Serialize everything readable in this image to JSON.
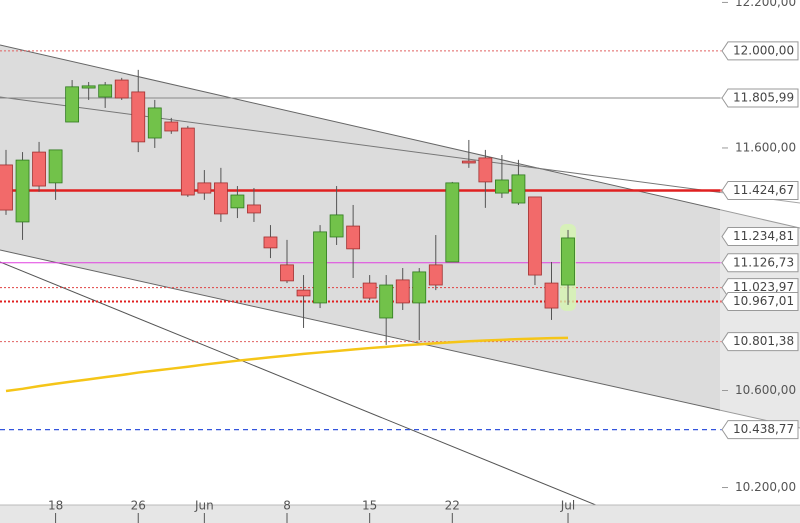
{
  "chart_data": {
    "type": "candlestick",
    "categories": [
      null,
      null,
      null,
      "18",
      null,
      null,
      null,
      null,
      "26",
      null,
      null,
      null,
      "Jun",
      null,
      null,
      null,
      null,
      "8",
      null,
      null,
      null,
      null,
      "15",
      null,
      null,
      null,
      null,
      "22",
      null,
      null,
      null,
      null,
      null,
      null,
      "Jul"
    ],
    "open": [
      11530,
      11295,
      11583,
      11456,
      11707,
      11847,
      11810,
      11880,
      11831,
      11641,
      11707,
      11682,
      11456,
      11456,
      11353,
      11365,
      11233,
      11118,
      11014,
      10961,
      11233,
      11278,
      11043,
      10899,
      11056,
      10961,
      11118,
      11130,
      11546,
      11559,
      11414,
      11373,
      11398,
      11043,
      11035
    ],
    "high": [
      11592,
      11583,
      11625,
      11592,
      11880,
      11872,
      11872,
      11889,
      11922,
      11798,
      11724,
      11691,
      11509,
      11518,
      11443,
      11435,
      11282,
      11221,
      11076,
      11282,
      11443,
      11365,
      11076,
      11076,
      11105,
      11105,
      11241,
      11460,
      11633,
      11592,
      11571,
      11551,
      11398,
      11130,
      11262
    ],
    "low": [
      11324,
      11221,
      11419,
      11386,
      11707,
      11798,
      11765,
      11798,
      11583,
      11600,
      11658,
      11398,
      11386,
      11295,
      11311,
      11295,
      11146,
      11043,
      10858,
      10940,
      11200,
      11064,
      10973,
      10788,
      10932,
      10808,
      11014,
      11130,
      11518,
      11353,
      11394,
      11365,
      11035,
      10891,
      10953
    ],
    "close": [
      11344,
      11550,
      11443,
      11592,
      11852,
      11856,
      11860,
      11806,
      11625,
      11765,
      11670,
      11406,
      11414,
      11328,
      11406,
      11332,
      11188,
      11052,
      10990,
      11254,
      11324,
      11184,
      10981,
      11035,
      10961,
      11089,
      11035,
      11456,
      11538,
      11460,
      11468,
      11489,
      11076,
      10940,
      11229
    ],
    "up_color": "#72c24a",
    "down_color": "#f26a6a",
    "moving_average": {
      "color": "#f5c518",
      "values": [
        10598,
        10607,
        10618,
        10628,
        10637,
        10646,
        10655,
        10664,
        10674,
        10682,
        10690,
        10698,
        10707,
        10715,
        10723,
        10730,
        10737,
        10744,
        10751,
        10757,
        10763,
        10769,
        10775,
        10780,
        10786,
        10790,
        10795,
        10799,
        10803,
        10806,
        10809,
        10812,
        10814,
        10816,
        10817
      ]
    },
    "ylim": [
      10128,
      12210
    ],
    "yticks": [
      {
        "value": 12200,
        "label": "12.200,00"
      },
      {
        "value": 11600,
        "label": "11.600,00"
      },
      {
        "value": 10600,
        "label": "10.600,00"
      },
      {
        "value": 10200,
        "label": "10.200,00"
      }
    ],
    "levels": [
      {
        "value": 12000,
        "label": "12.000,00",
        "color": "#e06060",
        "style": "dotted"
      },
      {
        "value": 11805.99,
        "label": "11.805,99",
        "color": "#888888",
        "style": "solid"
      },
      {
        "value": 11424.67,
        "label": "11.424,67",
        "color": "#e02020",
        "style": "thick"
      },
      {
        "value": 11234.81,
        "label": "11.234,81",
        "color": "#888888",
        "style": "none"
      },
      {
        "value": 11126.73,
        "label": "11.126,73",
        "color": "#e040e0",
        "style": "solid"
      },
      {
        "value": 11023.97,
        "label": "11.023,97",
        "color": "#e04040",
        "style": "dotted"
      },
      {
        "value": 10967.01,
        "label": "10.967,01",
        "color": "#e02020",
        "style": "dotted-thick"
      },
      {
        "value": 10801.38,
        "label": "10.801,38",
        "color": "#e06060",
        "style": "dotted"
      },
      {
        "value": 10438.77,
        "label": "10.438,77",
        "color": "#3355dd",
        "style": "dashed"
      }
    ]
  }
}
